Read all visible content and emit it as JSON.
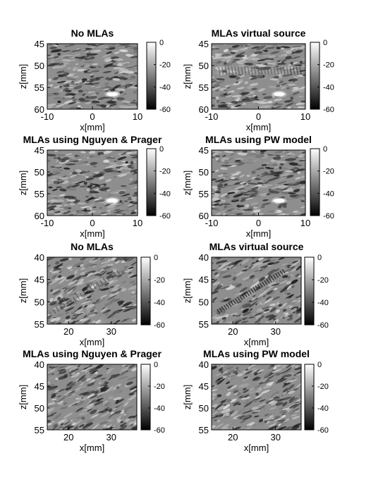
{
  "chart_data": [
    {
      "type": "heatmap",
      "title": "No MLAs",
      "xlabel": "x[mm]",
      "ylabel": "z[mm]",
      "xlim": [
        -10,
        10
      ],
      "ylim": [
        45,
        60
      ],
      "xticks": [
        "-10",
        "0",
        "10"
      ],
      "yticks": [
        "45",
        "50",
        "55",
        "60"
      ],
      "colorbar": {
        "range": [
          -60,
          0
        ],
        "ticks": [
          "0",
          "-20",
          "-40",
          "-60"
        ]
      },
      "bright_spot": true,
      "artifact": "none"
    },
    {
      "type": "heatmap",
      "title": "MLAs virtual source",
      "xlabel": "x[mm]",
      "ylabel": "z[mm]",
      "xlim": [
        -10,
        10
      ],
      "ylim": [
        45,
        60
      ],
      "xticks": [
        "-10",
        "0",
        "10"
      ],
      "yticks": [
        "45",
        "50",
        "55",
        "60"
      ],
      "colorbar": {
        "range": [
          -60,
          0
        ],
        "ticks": [
          "0",
          "-20",
          "-40",
          "-60"
        ]
      },
      "bright_spot": true,
      "artifact": "horizontal-band"
    },
    {
      "type": "heatmap",
      "title": "MLAs using Nguyen & Prager",
      "xlabel": "x[mm]",
      "ylabel": "z[mm]",
      "xlim": [
        -10,
        10
      ],
      "ylim": [
        45,
        60
      ],
      "xticks": [
        "-10",
        "0",
        "10"
      ],
      "yticks": [
        "45",
        "50",
        "55",
        "60"
      ],
      "colorbar": {
        "range": [
          -60,
          0
        ],
        "ticks": [
          "0",
          "-20",
          "-40",
          "-60"
        ]
      },
      "bright_spot": true,
      "artifact": "none"
    },
    {
      "type": "heatmap",
      "title": "MLAs using PW model",
      "xlabel": "x[mm]",
      "ylabel": "z[mm]",
      "xlim": [
        -10,
        10
      ],
      "ylim": [
        45,
        60
      ],
      "xticks": [
        "-10",
        "0",
        "10"
      ],
      "yticks": [
        "45",
        "50",
        "55",
        "60"
      ],
      "colorbar": {
        "range": [
          -60,
          0
        ],
        "ticks": [
          "0",
          "-20",
          "-40",
          "-60"
        ]
      },
      "bright_spot": true,
      "artifact": "none"
    },
    {
      "type": "heatmap",
      "title": "No MLAs",
      "xlabel": "x[mm]",
      "ylabel": "z[mm]",
      "xlim": [
        15,
        36
      ],
      "ylim": [
        40,
        55
      ],
      "xticks": [
        "20",
        "30"
      ],
      "yticks": [
        "40",
        "45",
        "50",
        "55"
      ],
      "colorbar": {
        "range": [
          -60,
          0
        ],
        "ticks": [
          "0",
          "-20",
          "-40",
          "-60"
        ]
      },
      "bright_spot": false,
      "artifact": "diagonal-band"
    },
    {
      "type": "heatmap",
      "title": "MLAs virtual source",
      "xlabel": "x[mm]",
      "ylabel": "z[mm]",
      "xlim": [
        15,
        36
      ],
      "ylim": [
        40,
        55
      ],
      "xticks": [
        "20",
        "30"
      ],
      "yticks": [
        "40",
        "45",
        "50",
        "55"
      ],
      "colorbar": {
        "range": [
          -60,
          0
        ],
        "ticks": [
          "0",
          "-20",
          "-40",
          "-60"
        ]
      },
      "bright_spot": false,
      "artifact": "diagonal-band-strong"
    },
    {
      "type": "heatmap",
      "title": "MLAs using Nguyen & Prager",
      "xlabel": "x[mm]",
      "ylabel": "z[mm]",
      "xlim": [
        15,
        36
      ],
      "ylim": [
        40,
        55
      ],
      "xticks": [
        "20",
        "30"
      ],
      "yticks": [
        "40",
        "45",
        "50",
        "55"
      ],
      "colorbar": {
        "range": [
          -60,
          0
        ],
        "ticks": [
          "0",
          "-20",
          "-40",
          "-60"
        ]
      },
      "bright_spot": false,
      "artifact": "none"
    },
    {
      "type": "heatmap",
      "title": "MLAs using PW model",
      "xlabel": "x[mm]",
      "ylabel": "z[mm]",
      "xlim": [
        15,
        36
      ],
      "ylim": [
        40,
        55
      ],
      "xticks": [
        "20",
        "30"
      ],
      "yticks": [
        "40",
        "45",
        "50",
        "55"
      ],
      "colorbar": {
        "range": [
          -60,
          0
        ],
        "ticks": [
          "0",
          "-20",
          "-40",
          "-60"
        ]
      },
      "bright_spot": false,
      "artifact": "none"
    }
  ]
}
